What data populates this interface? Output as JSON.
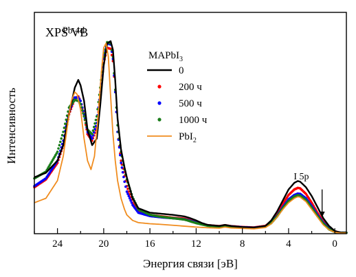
{
  "chart_data": {
    "type": "line",
    "title": "XPS VB",
    "xlabel": "Энергия связи [эВ]",
    "ylabel": "Интенсивность",
    "xlim": [
      26,
      -1
    ],
    "x_reversed": true,
    "ylim": [
      0,
      1
    ],
    "y_ticks_shown": false,
    "x_ticks": [
      24,
      20,
      16,
      12,
      8,
      4,
      0
    ],
    "grid": false,
    "legend": {
      "title_main": "MAPbI",
      "title_sub": "3",
      "placement": "top-center"
    },
    "annotations": [
      {
        "text": "Pb 4d",
        "x": 22.6,
        "y": 0.905
      },
      {
        "text": "I 5p",
        "x": 2.9,
        "y": 0.245
      },
      {
        "text": "arrow",
        "x": 1.1,
        "y_from": 0.2,
        "y_to": 0.075
      }
    ],
    "series": [
      {
        "name": "0",
        "style": "line",
        "color": "#000000",
        "x": [
          26,
          25,
          24,
          23.5,
          23,
          22.5,
          22.2,
          22,
          21.7,
          21.4,
          21,
          20.6,
          20.3,
          20,
          19.7,
          19.4,
          19.2,
          19,
          18.8,
          18.5,
          18.2,
          18,
          17.5,
          17,
          16,
          15,
          14,
          13,
          12.5,
          12,
          11.5,
          11,
          10,
          9.5,
          9,
          8,
          7,
          6,
          5.5,
          5,
          4.5,
          4,
          3.5,
          3.2,
          3,
          2.5,
          2,
          1.5,
          1,
          0.5,
          0,
          -0.5,
          -1
        ],
        "y": [
          0.255,
          0.275,
          0.33,
          0.4,
          0.54,
          0.66,
          0.695,
          0.67,
          0.6,
          0.47,
          0.4,
          0.43,
          0.58,
          0.76,
          0.86,
          0.87,
          0.83,
          0.69,
          0.52,
          0.38,
          0.3,
          0.255,
          0.16,
          0.115,
          0.095,
          0.09,
          0.085,
          0.078,
          0.07,
          0.06,
          0.048,
          0.04,
          0.035,
          0.04,
          0.035,
          0.03,
          0.028,
          0.035,
          0.06,
          0.1,
          0.15,
          0.2,
          0.23,
          0.238,
          0.235,
          0.21,
          0.17,
          0.12,
          0.07,
          0.035,
          0.012,
          0.005,
          0.005
        ]
      },
      {
        "name": "200 ч",
        "style": "points",
        "color": "#ff0000",
        "x": [
          26,
          25,
          24,
          23.5,
          23,
          22.5,
          22.2,
          22,
          21.7,
          21.4,
          21,
          20.6,
          20.3,
          20,
          19.7,
          19.4,
          19.2,
          19,
          18.8,
          18.5,
          18.2,
          18,
          17.5,
          17,
          16,
          15,
          14,
          13,
          12.5,
          12,
          11.5,
          11,
          10,
          9.5,
          9,
          8,
          7,
          6,
          5.5,
          5,
          4.5,
          4,
          3.5,
          3.2,
          3,
          2.5,
          2,
          1.5,
          1,
          0.5,
          0,
          -0.5,
          -1
        ],
        "y": [
          0.21,
          0.245,
          0.32,
          0.4,
          0.54,
          0.61,
          0.62,
          0.6,
          0.535,
          0.45,
          0.42,
          0.48,
          0.62,
          0.77,
          0.84,
          0.835,
          0.78,
          0.64,
          0.46,
          0.33,
          0.26,
          0.215,
          0.14,
          0.1,
          0.085,
          0.078,
          0.072,
          0.068,
          0.06,
          0.052,
          0.044,
          0.038,
          0.034,
          0.038,
          0.034,
          0.03,
          0.028,
          0.035,
          0.055,
          0.09,
          0.135,
          0.175,
          0.2,
          0.207,
          0.205,
          0.18,
          0.14,
          0.095,
          0.055,
          0.025,
          0.01,
          0.004,
          0.004
        ]
      },
      {
        "name": "500 ч",
        "style": "points",
        "color": "#0000ff",
        "x": [
          26,
          25,
          24,
          23.5,
          23,
          22.5,
          22.2,
          22,
          21.7,
          21.4,
          21,
          20.6,
          20.3,
          20,
          19.7,
          19.4,
          19.2,
          19,
          18.8,
          18.5,
          18.2,
          18,
          17.5,
          17,
          16,
          15,
          14,
          13,
          12.5,
          12,
          11.5,
          11,
          10,
          9.5,
          9,
          8,
          7,
          6,
          5.5,
          5,
          4.5,
          4,
          3.5,
          3.2,
          3,
          2.5,
          2,
          1.5,
          1,
          0.5,
          0,
          -0.5,
          -1
        ],
        "y": [
          0.215,
          0.25,
          0.33,
          0.42,
          0.55,
          0.615,
          0.615,
          0.6,
          0.54,
          0.46,
          0.43,
          0.5,
          0.64,
          0.79,
          0.86,
          0.855,
          0.79,
          0.64,
          0.46,
          0.32,
          0.235,
          0.19,
          0.13,
          0.095,
          0.08,
          0.074,
          0.07,
          0.065,
          0.058,
          0.05,
          0.043,
          0.037,
          0.033,
          0.037,
          0.033,
          0.029,
          0.027,
          0.033,
          0.05,
          0.08,
          0.12,
          0.155,
          0.175,
          0.181,
          0.18,
          0.16,
          0.125,
          0.085,
          0.05,
          0.022,
          0.009,
          0.004,
          0.004
        ]
      },
      {
        "name": "1000 ч",
        "style": "points",
        "color": "#1a7d1a",
        "x": [
          26,
          25,
          24,
          23.5,
          23,
          22.5,
          22.2,
          22,
          21.7,
          21.4,
          21,
          20.6,
          20.3,
          20,
          19.7,
          19.4,
          19.2,
          19,
          18.8,
          18.5,
          18.2,
          18,
          17.5,
          17,
          16,
          15,
          14,
          13,
          12.5,
          12,
          11.5,
          11,
          10,
          9.5,
          9,
          8,
          7,
          6,
          5.5,
          5,
          4.5,
          4,
          3.5,
          3.2,
          3,
          2.5,
          2,
          1.5,
          1,
          0.5,
          0,
          -0.5,
          -1
        ],
        "y": [
          0.25,
          0.28,
          0.37,
          0.46,
          0.57,
          0.605,
          0.6,
          0.585,
          0.53,
          0.47,
          0.45,
          0.53,
          0.66,
          0.8,
          0.865,
          0.86,
          0.8,
          0.65,
          0.49,
          0.37,
          0.29,
          0.245,
          0.165,
          0.11,
          0.085,
          0.076,
          0.07,
          0.064,
          0.056,
          0.048,
          0.042,
          0.036,
          0.032,
          0.036,
          0.032,
          0.028,
          0.026,
          0.032,
          0.048,
          0.078,
          0.115,
          0.148,
          0.168,
          0.174,
          0.172,
          0.152,
          0.118,
          0.08,
          0.046,
          0.02,
          0.008,
          0.004,
          0.004
        ]
      },
      {
        "name": "PbI",
        "name_sub": "2",
        "style": "line",
        "color": "#f08c1e",
        "x": [
          26,
          25,
          24,
          23.5,
          23,
          22.8,
          22.5,
          22.3,
          22,
          21.7,
          21.4,
          21.1,
          20.8,
          20.5,
          20.2,
          20,
          19.8,
          19.6,
          19.4,
          19.2,
          19,
          18.8,
          18.5,
          18.2,
          18,
          17.5,
          17,
          16,
          15,
          14,
          13,
          12,
          11,
          10,
          9.5,
          9,
          8,
          7,
          6,
          5.5,
          5,
          4.5,
          4,
          3.5,
          3.2,
          3,
          2.5,
          2,
          1.5,
          1,
          0.5,
          0,
          -0.5,
          -1
        ],
        "y": [
          0.14,
          0.16,
          0.24,
          0.35,
          0.54,
          0.6,
          0.64,
          0.63,
          0.56,
          0.43,
          0.33,
          0.29,
          0.35,
          0.52,
          0.73,
          0.84,
          0.86,
          0.8,
          0.62,
          0.45,
          0.33,
          0.24,
          0.16,
          0.11,
          0.085,
          0.06,
          0.05,
          0.045,
          0.042,
          0.038,
          0.034,
          0.03,
          0.027,
          0.025,
          0.03,
          0.026,
          0.024,
          0.022,
          0.028,
          0.045,
          0.075,
          0.11,
          0.14,
          0.16,
          0.167,
          0.165,
          0.145,
          0.11,
          0.075,
          0.04,
          0.018,
          0.006,
          0.003,
          0.003
        ]
      }
    ]
  }
}
